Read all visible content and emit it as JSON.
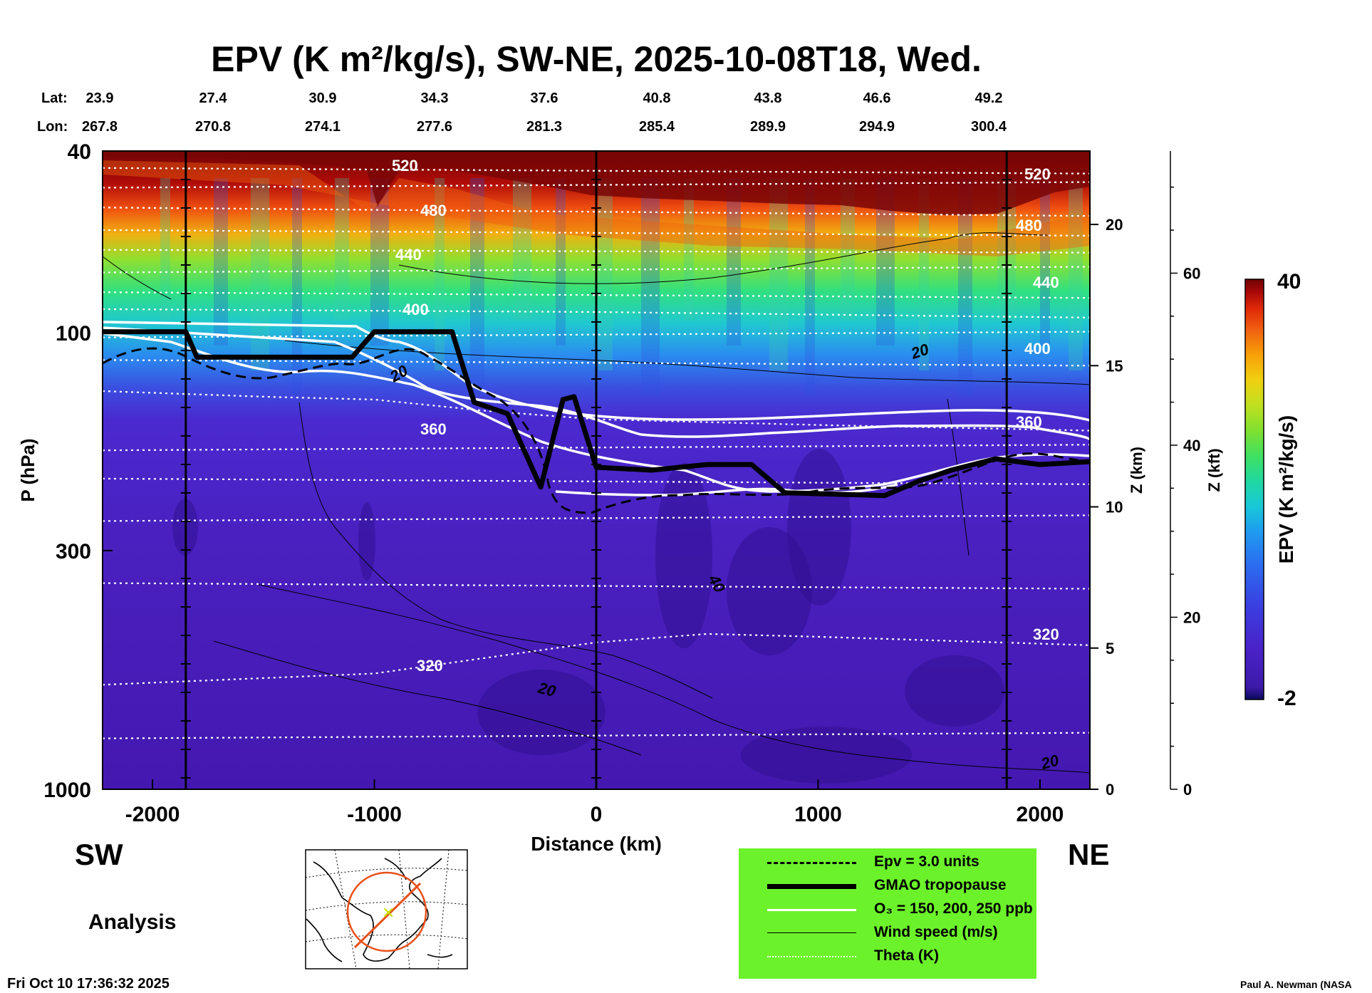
{
  "title": "EPV (K m²/kg/s), SW-NE, 2025-10-08T18, Wed.",
  "lat_label": "Lat:",
  "lon_label": "Lon:",
  "lat": [
    "23.9",
    "27.4",
    "30.9",
    "34.3",
    "37.6",
    "40.8",
    "43.8",
    "46.6",
    "49.2"
  ],
  "lon": [
    "267.8",
    "270.8",
    "274.1",
    "277.6",
    "281.3",
    "285.4",
    "289.9",
    "294.9",
    "300.4"
  ],
  "left_direction": "SW",
  "right_direction": "NE",
  "analysis_label": "Analysis",
  "timestamp": "Fri Oct 10 17:36:32 2025",
  "credit": "Paul A. Newman (NASA",
  "colorbar": {
    "label": "EPV (K m²/kg/s)",
    "max_label": "40",
    "min_label": "-2",
    "colors": [
      "#0a0a5c",
      "#3c1aa8",
      "#4a22c8",
      "#3a3ee0",
      "#2c6cf0",
      "#1e9cf0",
      "#18c8d8",
      "#20d8a0",
      "#40e060",
      "#80e030",
      "#c0e020",
      "#f0d010",
      "#f8a008",
      "#f06010",
      "#e02808",
      "#a80808",
      "#6e0404"
    ]
  },
  "legend": {
    "items": [
      {
        "label": "Epv = 3.0 units"
      },
      {
        "label": "GMAO tropopause"
      },
      {
        "label": "O₃ = 150, 200, 250 ppb"
      },
      {
        "label": "Wind speed (m/s)"
      },
      {
        "label": "Theta (K)"
      }
    ]
  },
  "chart_data": {
    "type": "heatmap",
    "title": "EPV (K m²/kg/s), SW-NE, 2025-10-08T18, Wed.",
    "xlabel": "Distance (km)",
    "ylabel": "P (hPa)",
    "xlim": [
      -2225,
      2225
    ],
    "ylim": [
      1000,
      40
    ],
    "x_ticks": [
      -2000,
      -1000,
      0,
      1000,
      2000
    ],
    "y_ticks": [
      40,
      100,
      300,
      1000
    ],
    "z_km_label": "Z (km)",
    "z_km_ticks": [
      0,
      5,
      10,
      15,
      20
    ],
    "z_kft_label": "Z (kft)",
    "z_kft_ticks": [
      0,
      20,
      40,
      60
    ],
    "vertical_markers_km": [
      -1850,
      0,
      1850
    ],
    "theta_contour_labels": [
      "520",
      "480",
      "440",
      "400",
      "360",
      "320"
    ],
    "wind_contour_labels": [
      "20",
      "20",
      "40",
      "20",
      "20"
    ],
    "tropopause_hpa": [
      [
        -2225,
        100
      ],
      [
        -1900,
        100
      ],
      [
        -1800,
        112
      ],
      [
        -1100,
        112
      ],
      [
        -1000,
        100
      ],
      [
        -700,
        100
      ],
      [
        -550,
        135
      ],
      [
        -400,
        145
      ],
      [
        -300,
        220
      ],
      [
        -200,
        160
      ],
      [
        -150,
        148
      ],
      [
        -100,
        155
      ],
      [
        0,
        200
      ],
      [
        300,
        200
      ],
      [
        600,
        195
      ],
      [
        800,
        220
      ],
      [
        1100,
        225
      ],
      [
        1300,
        225
      ],
      [
        1400,
        210
      ],
      [
        1600,
        190
      ],
      [
        1800,
        185
      ],
      [
        2000,
        200
      ],
      [
        2225,
        195
      ]
    ],
    "tropopause_z_km": [
      [
        -2225,
        16.2
      ],
      [
        -1850,
        16.2
      ],
      [
        -1800,
        15.3
      ],
      [
        -1100,
        15.3
      ],
      [
        -1000,
        16.2
      ],
      [
        -650,
        16.2
      ],
      [
        -550,
        13.7
      ],
      [
        -400,
        13.3
      ],
      [
        -250,
        10.7
      ],
      [
        -150,
        13.8
      ],
      [
        -100,
        13.9
      ],
      [
        0,
        11.4
      ],
      [
        250,
        11.3
      ],
      [
        500,
        11.5
      ],
      [
        700,
        11.5
      ],
      [
        850,
        10.5
      ],
      [
        1300,
        10.4
      ],
      [
        1450,
        10.9
      ],
      [
        1600,
        11.3
      ],
      [
        1800,
        11.7
      ],
      [
        2000,
        11.5
      ],
      [
        2225,
        11.6
      ]
    ],
    "theta_levels_z_km": {
      "320": [
        [
          -2225,
          3.7
        ],
        [
          -1000,
          4.1
        ],
        [
          0,
          5.2
        ],
        [
          500,
          5.5
        ],
        [
          1000,
          5.4
        ],
        [
          2225,
          5.1
        ]
      ],
      "360": [
        [
          -2225,
          14.1
        ],
        [
          -1500,
          13.9
        ],
        [
          -1000,
          13.8
        ],
        [
          -500,
          13.4
        ],
        [
          0,
          13.1
        ],
        [
          1000,
          12.9
        ],
        [
          2225,
          12.7
        ]
      ],
      "400": [
        [
          -2225,
          17.0
        ],
        [
          0,
          16.9
        ],
        [
          2225,
          16.7
        ]
      ],
      "440": [
        [
          -2225,
          19.1
        ],
        [
          2225,
          19.0
        ]
      ],
      "480": [
        [
          -2225,
          20.6
        ],
        [
          2225,
          20.3
        ]
      ],
      "520": [
        [
          -2225,
          22.0
        ],
        [
          2225,
          21.8
        ]
      ]
    }
  }
}
